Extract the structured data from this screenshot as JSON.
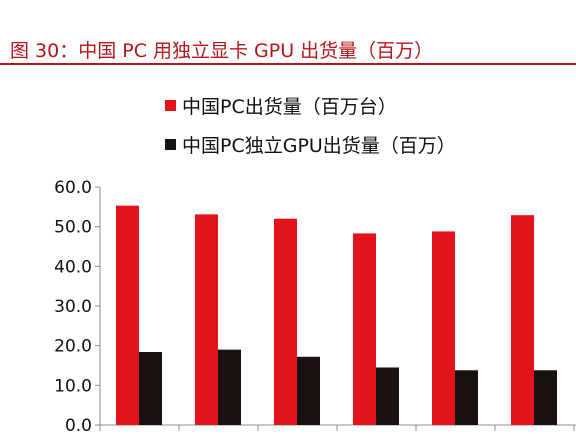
{
  "figure_title": "图 30：中国 PC 用独立显卡 GPU 出货量（百万）",
  "colors": {
    "series1": "#e3141b",
    "series2": "#1a1210",
    "title": "#b3161b",
    "axis": "#8c8c8c"
  },
  "chart_data": {
    "type": "bar",
    "title": "",
    "xlabel": "",
    "ylabel": "",
    "ylim": [
      0,
      60
    ],
    "yticks": [
      "0.0",
      "10.0",
      "20.0",
      "30.0",
      "40.0",
      "50.0",
      "60.0"
    ],
    "categories": [
      "",
      "",
      "",
      "",
      "",
      ""
    ],
    "grid": false,
    "legend_position": "top",
    "series": [
      {
        "name": "中国PC出货量（百万台）",
        "values": [
          55.3,
          53.1,
          52.0,
          48.3,
          48.8,
          52.9
        ]
      },
      {
        "name": "中国PC独立GPU出货量（百万）",
        "values": [
          18.4,
          19.0,
          17.2,
          14.5,
          13.8,
          13.8
        ]
      }
    ]
  }
}
